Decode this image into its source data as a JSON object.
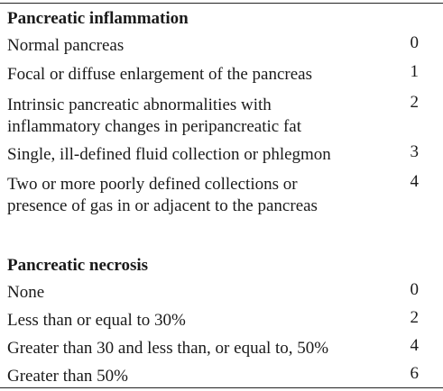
{
  "sections": [
    {
      "heading": "Pancreatic inflammation",
      "items": [
        {
          "label": "Normal pancreas",
          "score": "0"
        },
        {
          "label": "Focal or diffuse enlargement of the pancreas",
          "score": "1"
        },
        {
          "label": "Intrinsic pancreatic abnormalities with inflammatory changes in peripancreatic fat",
          "score": "2"
        },
        {
          "label": "Single, ill-defined fluid collection or phlegmon",
          "score": "3"
        },
        {
          "label": "Two or more poorly defined collections or presence of gas in or adjacent to the pancreas",
          "score": "4"
        }
      ]
    },
    {
      "heading": "Pancreatic necrosis",
      "items": [
        {
          "label": "None",
          "score": "0"
        },
        {
          "label": "Less than or equal to 30%",
          "score": "2"
        },
        {
          "label": "Greater than 30 and less than, or equal to, 50%",
          "score": "4"
        },
        {
          "label": "Greater than 50%",
          "score": "6"
        }
      ]
    }
  ]
}
